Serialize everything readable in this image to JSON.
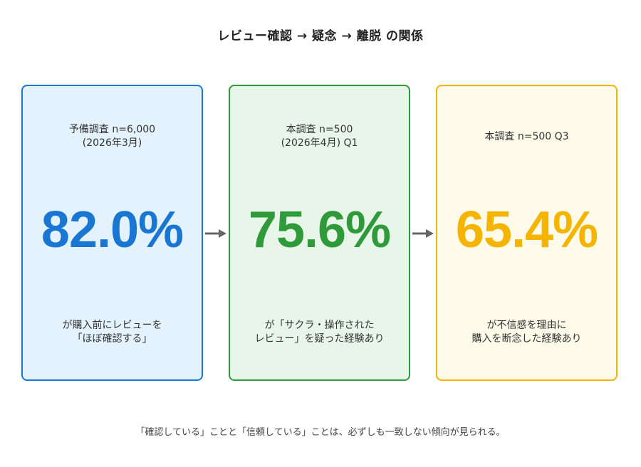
{
  "title": "レビュー確認 → 疑念 → 離脱 の関係",
  "colors": {
    "blue": "#1976d2",
    "blue_bg": "#e3f2fd",
    "green": "#2e9a39",
    "green_bg": "#e8f5e9",
    "yellow": "#f5b400",
    "yellow_bg": "#fffbea",
    "arrow": "#666666"
  },
  "cards": [
    {
      "heading_line1": "予備調査 n=6,000",
      "heading_line2": "(2026年3月)",
      "value": "82.0%",
      "caption_line1": "が購入前にレビューを",
      "caption_line2": "「ほぼ確認する」"
    },
    {
      "heading_line1": "本調査 n=500",
      "heading_line2": "(2026年4月) Q1",
      "value": "75.6%",
      "caption_line1": "が「サクラ・操作された",
      "caption_line2": "レビュー」を疑った経験あり"
    },
    {
      "heading_line1": "本調査 n=500 Q3",
      "heading_line2": "",
      "value": "65.4%",
      "caption_line1": "が不信感を理由に",
      "caption_line2": "購入を断念した経験あり"
    }
  ],
  "footer": "「確認している」ことと「信頼している」ことは、必ずしも一致しない傾向が見られる。"
}
